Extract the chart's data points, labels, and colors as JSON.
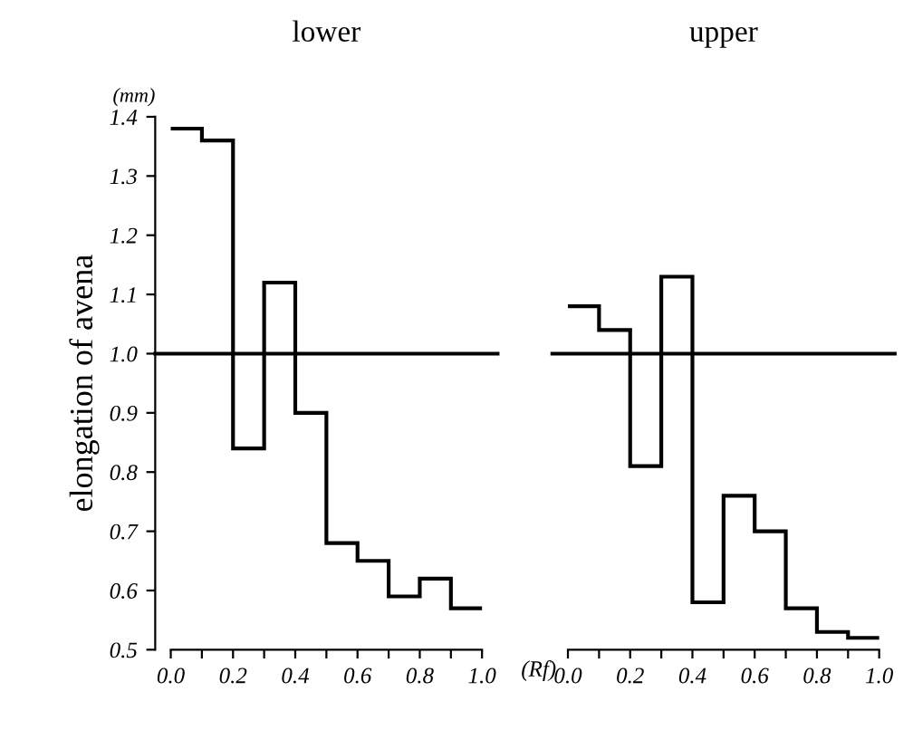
{
  "chart_data": [
    {
      "type": "histogram",
      "title": "lower",
      "ylabel": "elongation of avena",
      "xlabel": "(Rf)",
      "annotations": [
        "(mm)"
      ],
      "bins": [
        0.0,
        0.1,
        0.2,
        0.3,
        0.4,
        0.5,
        0.6,
        0.7,
        0.8,
        0.9,
        1.0
      ],
      "values": [
        1.38,
        1.36,
        0.84,
        1.12,
        0.9,
        0.68,
        0.65,
        0.59,
        0.62,
        0.57
      ],
      "color": "#000000",
      "xlim": [
        -0.05,
        1.05
      ],
      "ylim": [
        0.5,
        1.4
      ],
      "xticks": [
        {
          "value": 0,
          "label": "0.0"
        },
        {
          "value": 0.1,
          "label": null
        },
        {
          "value": 0.2,
          "label": "0.2"
        },
        {
          "value": 0.3,
          "label": null
        },
        {
          "value": 0.4,
          "label": "0.4"
        },
        {
          "value": 0.5,
          "label": null
        },
        {
          "value": 0.6,
          "label": "0.6"
        },
        {
          "value": 0.7,
          "label": null
        },
        {
          "value": 0.8,
          "label": "0.8"
        },
        {
          "value": 0.9,
          "label": null
        },
        {
          "value": 1,
          "label": "1.0"
        }
      ],
      "yticks": [
        {
          "value": 0.5,
          "label": "0.5"
        },
        {
          "value": 0.6,
          "label": "0.6"
        },
        {
          "value": 0.7,
          "label": "0.7"
        },
        {
          "value": 0.8,
          "label": "0.8"
        },
        {
          "value": 0.9,
          "label": "0.9"
        },
        {
          "value": 1,
          "label": "1.0"
        },
        {
          "value": 1.1,
          "label": "1.1"
        },
        {
          "value": 1.2,
          "label": "1.2"
        },
        {
          "value": 1.3,
          "label": "1.3"
        },
        {
          "value": 1.4,
          "label": "1.4"
        }
      ],
      "ref_lines": [
        {
          "axis": "y",
          "value": 1
        }
      ],
      "grid": false,
      "legend": false
    },
    {
      "type": "histogram",
      "title": "upper",
      "tick_labels": "x",
      "bins": [
        0.0,
        0.1,
        0.2,
        0.3,
        0.4,
        0.5,
        0.6,
        0.7,
        0.8,
        0.9,
        1.0
      ],
      "values": [
        1.08,
        1.04,
        0.81,
        1.13,
        0.58,
        0.76,
        0.7,
        0.57,
        0.53,
        0.52
      ],
      "color": "#000000",
      "xlim": [
        -0.05,
        1.05
      ],
      "ylim": [
        0.5,
        1.4
      ],
      "xticks": [
        {
          "value": 0,
          "label": "0.0"
        },
        {
          "value": 0.1,
          "label": null
        },
        {
          "value": 0.2,
          "label": "0.2"
        },
        {
          "value": 0.3,
          "label": null
        },
        {
          "value": 0.4,
          "label": "0.4"
        },
        {
          "value": 0.5,
          "label": null
        },
        {
          "value": 0.6,
          "label": "0.6"
        },
        {
          "value": 0.7,
          "label": null
        },
        {
          "value": 0.8,
          "label": "0.8"
        },
        {
          "value": 0.9,
          "label": null
        },
        {
          "value": 1,
          "label": "1.0"
        }
      ],
      "ref_lines": [
        {
          "axis": "y",
          "value": 1
        }
      ],
      "grid": false,
      "legend": false
    }
  ]
}
